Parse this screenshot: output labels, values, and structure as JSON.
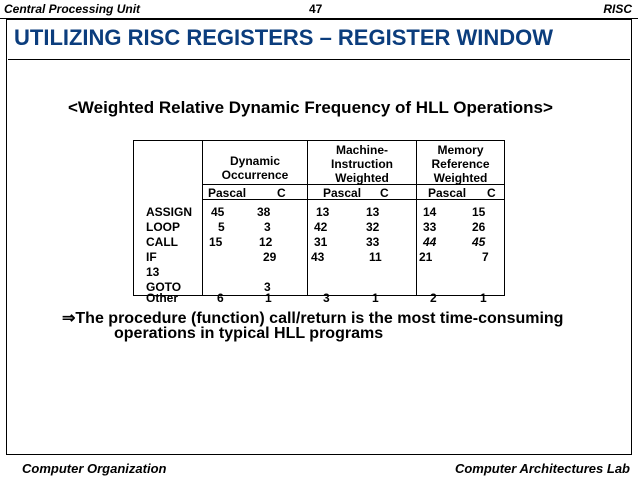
{
  "header": {
    "left": "Central Processing Unit",
    "page_number": "47",
    "right": "RISC"
  },
  "title": "UTILIZING RISC REGISTERS – REGISTER WINDOW",
  "subtitle": "<Weighted Relative Dynamic Frequency of HLL Operations>",
  "table": {
    "group_headers": [
      {
        "lines": [
          "Dynamic",
          "Occurrence"
        ]
      },
      {
        "lines": [
          "Machine-",
          "Instruction",
          "Weighted"
        ]
      },
      {
        "lines": [
          "Memory",
          "Reference",
          "Weighted"
        ]
      }
    ],
    "sub_headers": [
      "Pascal",
      "C",
      "Pascal",
      "C",
      "Pascal",
      "C"
    ],
    "rows": [
      {
        "op": "ASSIGN",
        "v": [
          "45",
          "38",
          "13",
          "13",
          "14",
          "15"
        ]
      },
      {
        "op": "LOOP",
        "v": [
          "5",
          "3",
          "42",
          "32",
          "33",
          "26"
        ]
      },
      {
        "op": "CALL",
        "v": [
          "15",
          "12",
          "31",
          "33",
          "44",
          "45"
        ]
      },
      {
        "op": "IF",
        "v": [
          "",
          "29",
          "43",
          "11",
          "21",
          "7"
        ],
        "extra": "13"
      },
      {
        "op": "GOTO",
        "v": [
          "",
          "3",
          "",
          "",
          "",
          ""
        ]
      },
      {
        "op": "Other",
        "v": [
          "6",
          "1",
          "3",
          "1",
          "2",
          "1"
        ]
      }
    ]
  },
  "bullet": {
    "arrow": "⇒",
    "line1": "The procedure (function) call/return is the most time-consuming",
    "line2": "operations in typical HLL programs"
  },
  "footer": {
    "left": "Computer Organization",
    "right": "Computer Architectures Lab"
  }
}
